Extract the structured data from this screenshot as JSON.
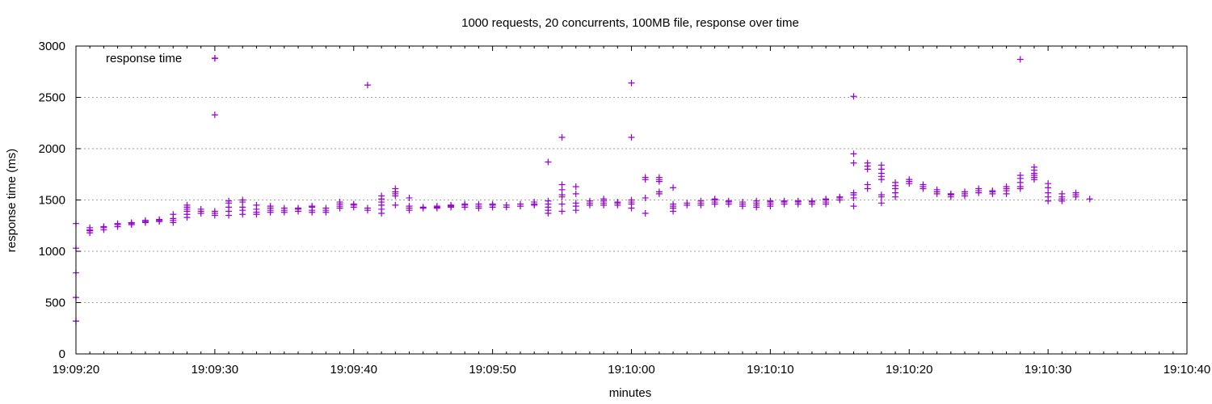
{
  "chart_data": {
    "type": "scatter",
    "title": "1000 requests, 20 concurrents, 100MB file, response over time",
    "xlabel": "minutes",
    "ylabel": "response time (ms)",
    "x_unit": "time (HH:MM:SS)",
    "xlim": [
      "19:09:20",
      "19:10:40"
    ],
    "ylim": [
      0,
      3000
    ],
    "x_ticks": [
      "19:09:20",
      "19:09:30",
      "19:09:40",
      "19:09:50",
      "19:10:00",
      "19:10:10",
      "19:10:20",
      "19:10:30",
      "19:10:40"
    ],
    "y_ticks": [
      0,
      500,
      1000,
      1500,
      2000,
      2500,
      3000
    ],
    "grid": "horizontal dotted",
    "legend_position": "top-left",
    "marker": "+",
    "colors": {
      "series": "#9400D3",
      "grid": "#a0a0a0",
      "axis": "#000000"
    },
    "series": [
      {
        "name": "response time",
        "points": [
          [
            "19:09:20",
            1270
          ],
          [
            "19:09:20",
            1030
          ],
          [
            "19:09:20",
            790
          ],
          [
            "19:09:20",
            550
          ],
          [
            "19:09:20",
            320
          ],
          [
            "19:09:21",
            1180
          ],
          [
            "19:09:21",
            1200
          ],
          [
            "19:09:21",
            1210
          ],
          [
            "19:09:21",
            1230
          ],
          [
            "19:09:22",
            1210
          ],
          [
            "19:09:22",
            1230
          ],
          [
            "19:09:22",
            1240
          ],
          [
            "19:09:23",
            1240
          ],
          [
            "19:09:23",
            1260
          ],
          [
            "19:09:23",
            1270
          ],
          [
            "19:09:24",
            1260
          ],
          [
            "19:09:24",
            1270
          ],
          [
            "19:09:24",
            1280
          ],
          [
            "19:09:25",
            1280
          ],
          [
            "19:09:25",
            1290
          ],
          [
            "19:09:25",
            1300
          ],
          [
            "19:09:26",
            1290
          ],
          [
            "19:09:26",
            1300
          ],
          [
            "19:09:26",
            1310
          ],
          [
            "19:09:27",
            1280
          ],
          [
            "19:09:27",
            1300
          ],
          [
            "19:09:27",
            1320
          ],
          [
            "19:09:27",
            1360
          ],
          [
            "19:09:28",
            1330
          ],
          [
            "19:09:28",
            1360
          ],
          [
            "19:09:28",
            1390
          ],
          [
            "19:09:28",
            1410
          ],
          [
            "19:09:28",
            1430
          ],
          [
            "19:09:28",
            1450
          ],
          [
            "19:09:29",
            1370
          ],
          [
            "19:09:29",
            1390
          ],
          [
            "19:09:29",
            1410
          ],
          [
            "19:09:30",
            1350
          ],
          [
            "19:09:30",
            1370
          ],
          [
            "19:09:30",
            1390
          ],
          [
            "19:09:30",
            2330
          ],
          [
            "19:09:30",
            2880
          ],
          [
            "19:09:31",
            1350
          ],
          [
            "19:09:31",
            1390
          ],
          [
            "19:09:31",
            1430
          ],
          [
            "19:09:31",
            1470
          ],
          [
            "19:09:31",
            1490
          ],
          [
            "19:09:32",
            1360
          ],
          [
            "19:09:32",
            1400
          ],
          [
            "19:09:32",
            1430
          ],
          [
            "19:09:32",
            1480
          ],
          [
            "19:09:32",
            1500
          ],
          [
            "19:09:33",
            1360
          ],
          [
            "19:09:33",
            1380
          ],
          [
            "19:09:33",
            1410
          ],
          [
            "19:09:33",
            1450
          ],
          [
            "19:09:34",
            1380
          ],
          [
            "19:09:34",
            1400
          ],
          [
            "19:09:34",
            1420
          ],
          [
            "19:09:34",
            1440
          ],
          [
            "19:09:35",
            1380
          ],
          [
            "19:09:35",
            1400
          ],
          [
            "19:09:35",
            1420
          ],
          [
            "19:09:36",
            1390
          ],
          [
            "19:09:36",
            1410
          ],
          [
            "19:09:36",
            1420
          ],
          [
            "19:09:37",
            1380
          ],
          [
            "19:09:37",
            1400
          ],
          [
            "19:09:37",
            1430
          ],
          [
            "19:09:37",
            1440
          ],
          [
            "19:09:38",
            1380
          ],
          [
            "19:09:38",
            1400
          ],
          [
            "19:09:38",
            1420
          ],
          [
            "19:09:39",
            1420
          ],
          [
            "19:09:39",
            1440
          ],
          [
            "19:09:39",
            1460
          ],
          [
            "19:09:39",
            1480
          ],
          [
            "19:09:40",
            1430
          ],
          [
            "19:09:40",
            1450
          ],
          [
            "19:09:40",
            1460
          ],
          [
            "19:09:41",
            1400
          ],
          [
            "19:09:41",
            1420
          ],
          [
            "19:09:41",
            2620
          ],
          [
            "19:09:42",
            1370
          ],
          [
            "19:09:42",
            1410
          ],
          [
            "19:09:42",
            1450
          ],
          [
            "19:09:42",
            1480
          ],
          [
            "19:09:42",
            1510
          ],
          [
            "19:09:42",
            1540
          ],
          [
            "19:09:43",
            1450
          ],
          [
            "19:09:43",
            1540
          ],
          [
            "19:09:43",
            1560
          ],
          [
            "19:09:43",
            1580
          ],
          [
            "19:09:43",
            1610
          ],
          [
            "19:09:44",
            1400
          ],
          [
            "19:09:44",
            1420
          ],
          [
            "19:09:44",
            1440
          ],
          [
            "19:09:44",
            1520
          ],
          [
            "19:09:45",
            1420
          ],
          [
            "19:09:45",
            1430
          ],
          [
            "19:09:46",
            1420
          ],
          [
            "19:09:46",
            1430
          ],
          [
            "19:09:46",
            1440
          ],
          [
            "19:09:47",
            1430
          ],
          [
            "19:09:47",
            1440
          ],
          [
            "19:09:47",
            1450
          ],
          [
            "19:09:48",
            1430
          ],
          [
            "19:09:48",
            1450
          ],
          [
            "19:09:48",
            1460
          ],
          [
            "19:09:49",
            1420
          ],
          [
            "19:09:49",
            1440
          ],
          [
            "19:09:49",
            1460
          ],
          [
            "19:09:50",
            1430
          ],
          [
            "19:09:50",
            1450
          ],
          [
            "19:09:50",
            1460
          ],
          [
            "19:09:51",
            1430
          ],
          [
            "19:09:51",
            1450
          ],
          [
            "19:09:52",
            1440
          ],
          [
            "19:09:52",
            1460
          ],
          [
            "19:09:53",
            1450
          ],
          [
            "19:09:53",
            1460
          ],
          [
            "19:09:53",
            1480
          ],
          [
            "19:09:54",
            1370
          ],
          [
            "19:09:54",
            1400
          ],
          [
            "19:09:54",
            1430
          ],
          [
            "19:09:54",
            1460
          ],
          [
            "19:09:54",
            1490
          ],
          [
            "19:09:54",
            1870
          ],
          [
            "19:09:55",
            1390
          ],
          [
            "19:09:55",
            1460
          ],
          [
            "19:09:55",
            1530
          ],
          [
            "19:09:55",
            1550
          ],
          [
            "19:09:55",
            1600
          ],
          [
            "19:09:55",
            1650
          ],
          [
            "19:09:55",
            2110
          ],
          [
            "19:09:56",
            1400
          ],
          [
            "19:09:56",
            1440
          ],
          [
            "19:09:56",
            1470
          ],
          [
            "19:09:56",
            1560
          ],
          [
            "19:09:56",
            1630
          ],
          [
            "19:09:57",
            1450
          ],
          [
            "19:09:57",
            1470
          ],
          [
            "19:09:57",
            1490
          ],
          [
            "19:09:58",
            1450
          ],
          [
            "19:09:58",
            1470
          ],
          [
            "19:09:58",
            1490
          ],
          [
            "19:09:58",
            1510
          ],
          [
            "19:09:59",
            1450
          ],
          [
            "19:09:59",
            1470
          ],
          [
            "19:09:59",
            1480
          ],
          [
            "19:10:00",
            1420
          ],
          [
            "19:10:00",
            1460
          ],
          [
            "19:10:00",
            1480
          ],
          [
            "19:10:00",
            1500
          ],
          [
            "19:10:00",
            2110
          ],
          [
            "19:10:00",
            2640
          ],
          [
            "19:10:01",
            1370
          ],
          [
            "19:10:01",
            1520
          ],
          [
            "19:10:01",
            1700
          ],
          [
            "19:10:01",
            1720
          ],
          [
            "19:10:02",
            1560
          ],
          [
            "19:10:02",
            1580
          ],
          [
            "19:10:02",
            1680
          ],
          [
            "19:10:02",
            1700
          ],
          [
            "19:10:02",
            1720
          ],
          [
            "19:10:03",
            1390
          ],
          [
            "19:10:03",
            1420
          ],
          [
            "19:10:03",
            1440
          ],
          [
            "19:10:03",
            1460
          ],
          [
            "19:10:03",
            1620
          ],
          [
            "19:10:04",
            1450
          ],
          [
            "19:10:04",
            1470
          ],
          [
            "19:10:05",
            1450
          ],
          [
            "19:10:05",
            1470
          ],
          [
            "19:10:05",
            1490
          ],
          [
            "19:10:06",
            1460
          ],
          [
            "19:10:06",
            1480
          ],
          [
            "19:10:06",
            1500
          ],
          [
            "19:10:06",
            1510
          ],
          [
            "19:10:07",
            1460
          ],
          [
            "19:10:07",
            1480
          ],
          [
            "19:10:07",
            1490
          ],
          [
            "19:10:08",
            1440
          ],
          [
            "19:10:08",
            1460
          ],
          [
            "19:10:08",
            1480
          ],
          [
            "19:10:09",
            1430
          ],
          [
            "19:10:09",
            1450
          ],
          [
            "19:10:09",
            1470
          ],
          [
            "19:10:09",
            1490
          ],
          [
            "19:10:10",
            1440
          ],
          [
            "19:10:10",
            1460
          ],
          [
            "19:10:10",
            1480
          ],
          [
            "19:10:10",
            1490
          ],
          [
            "19:10:11",
            1460
          ],
          [
            "19:10:11",
            1480
          ],
          [
            "19:10:11",
            1490
          ],
          [
            "19:10:12",
            1460
          ],
          [
            "19:10:12",
            1480
          ],
          [
            "19:10:12",
            1490
          ],
          [
            "19:10:13",
            1460
          ],
          [
            "19:10:13",
            1480
          ],
          [
            "19:10:13",
            1490
          ],
          [
            "19:10:14",
            1460
          ],
          [
            "19:10:14",
            1480
          ],
          [
            "19:10:14",
            1500
          ],
          [
            "19:10:14",
            1510
          ],
          [
            "19:10:15",
            1500
          ],
          [
            "19:10:15",
            1520
          ],
          [
            "19:10:15",
            1530
          ],
          [
            "19:10:16",
            1440
          ],
          [
            "19:10:16",
            1520
          ],
          [
            "19:10:16",
            1550
          ],
          [
            "19:10:16",
            1570
          ],
          [
            "19:10:16",
            1860
          ],
          [
            "19:10:16",
            1950
          ],
          [
            "19:10:16",
            2510
          ],
          [
            "19:10:17",
            1610
          ],
          [
            "19:10:17",
            1650
          ],
          [
            "19:10:17",
            1800
          ],
          [
            "19:10:17",
            1830
          ],
          [
            "19:10:17",
            1860
          ],
          [
            "19:10:18",
            1470
          ],
          [
            "19:10:18",
            1530
          ],
          [
            "19:10:18",
            1550
          ],
          [
            "19:10:18",
            1700
          ],
          [
            "19:10:18",
            1730
          ],
          [
            "19:10:18",
            1760
          ],
          [
            "19:10:18",
            1800
          ],
          [
            "19:10:18",
            1840
          ],
          [
            "19:10:19",
            1530
          ],
          [
            "19:10:19",
            1570
          ],
          [
            "19:10:19",
            1610
          ],
          [
            "19:10:19",
            1640
          ],
          [
            "19:10:19",
            1670
          ],
          [
            "19:10:20",
            1660
          ],
          [
            "19:10:20",
            1680
          ],
          [
            "19:10:20",
            1700
          ],
          [
            "19:10:21",
            1610
          ],
          [
            "19:10:21",
            1630
          ],
          [
            "19:10:21",
            1650
          ],
          [
            "19:10:22",
            1560
          ],
          [
            "19:10:22",
            1580
          ],
          [
            "19:10:22",
            1600
          ],
          [
            "19:10:23",
            1530
          ],
          [
            "19:10:23",
            1550
          ],
          [
            "19:10:23",
            1560
          ],
          [
            "19:10:24",
            1540
          ],
          [
            "19:10:24",
            1560
          ],
          [
            "19:10:24",
            1580
          ],
          [
            "19:10:25",
            1570
          ],
          [
            "19:10:25",
            1590
          ],
          [
            "19:10:25",
            1610
          ],
          [
            "19:10:26",
            1560
          ],
          [
            "19:10:26",
            1580
          ],
          [
            "19:10:26",
            1590
          ],
          [
            "19:10:27",
            1560
          ],
          [
            "19:10:27",
            1590
          ],
          [
            "19:10:27",
            1610
          ],
          [
            "19:10:27",
            1630
          ],
          [
            "19:10:28",
            1610
          ],
          [
            "19:10:28",
            1630
          ],
          [
            "19:10:28",
            1670
          ],
          [
            "19:10:28",
            1710
          ],
          [
            "19:10:28",
            1740
          ],
          [
            "19:10:28",
            2870
          ],
          [
            "19:10:29",
            1700
          ],
          [
            "19:10:29",
            1720
          ],
          [
            "19:10:29",
            1740
          ],
          [
            "19:10:29",
            1760
          ],
          [
            "19:10:29",
            1790
          ],
          [
            "19:10:29",
            1820
          ],
          [
            "19:10:30",
            1490
          ],
          [
            "19:10:30",
            1530
          ],
          [
            "19:10:30",
            1570
          ],
          [
            "19:10:30",
            1620
          ],
          [
            "19:10:30",
            1660
          ],
          [
            "19:10:31",
            1490
          ],
          [
            "19:10:31",
            1510
          ],
          [
            "19:10:31",
            1530
          ],
          [
            "19:10:31",
            1560
          ],
          [
            "19:10:32",
            1530
          ],
          [
            "19:10:32",
            1550
          ],
          [
            "19:10:32",
            1570
          ],
          [
            "19:10:33",
            1510
          ]
        ]
      }
    ]
  }
}
